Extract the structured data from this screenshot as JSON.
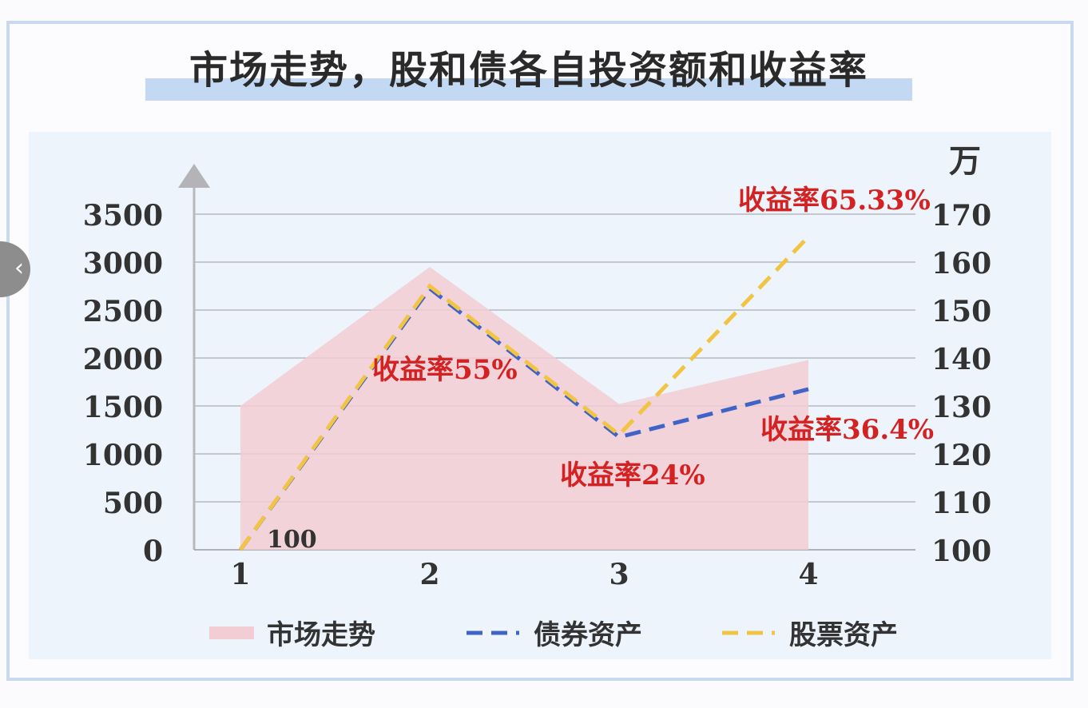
{
  "title": "市场走势，股和债各自投资额和收益率",
  "chart_data": {
    "type": "line",
    "title": "市场走势，股和债各自投资额和收益率",
    "x": [
      1,
      2,
      3,
      4
    ],
    "left_axis": {
      "ticks": [
        0,
        500,
        1000,
        1500,
        2000,
        2500,
        3000,
        3500
      ],
      "ylim": [
        0,
        3500
      ]
    },
    "right_axis": {
      "unit": "万",
      "ticks": [
        100,
        110,
        120,
        130,
        140,
        150,
        160,
        170
      ],
      "ylim": [
        100,
        170
      ]
    },
    "series": [
      {
        "name": "市场走势",
        "kind": "area",
        "axis": "left",
        "values": [
          1500,
          2950,
          1520,
          1980
        ],
        "color": "#f3cdd4"
      },
      {
        "name": "债券资产",
        "kind": "dashed-line",
        "axis": "right",
        "values": [
          100,
          154.5,
          123.5,
          133.5
        ],
        "color": "#3f63c6"
      },
      {
        "name": "股票资产",
        "kind": "dashed-line",
        "axis": "right",
        "values": [
          100,
          155,
          124,
          165.3
        ],
        "color": "#f1c444"
      }
    ],
    "annotations": [
      {
        "text": "100",
        "color": "#333333"
      },
      {
        "text": "收益率55%",
        "color": "#d42222"
      },
      {
        "text": "收益率24%",
        "color": "#d42222"
      },
      {
        "text": "收益率65.33%",
        "color": "#d42222"
      },
      {
        "text": "收益率36.4%",
        "color": "#d42222"
      }
    ],
    "legend": {
      "placement": "bottom",
      "items": [
        "市场走势",
        "债券资产",
        "股票资产"
      ]
    },
    "grid": true
  }
}
